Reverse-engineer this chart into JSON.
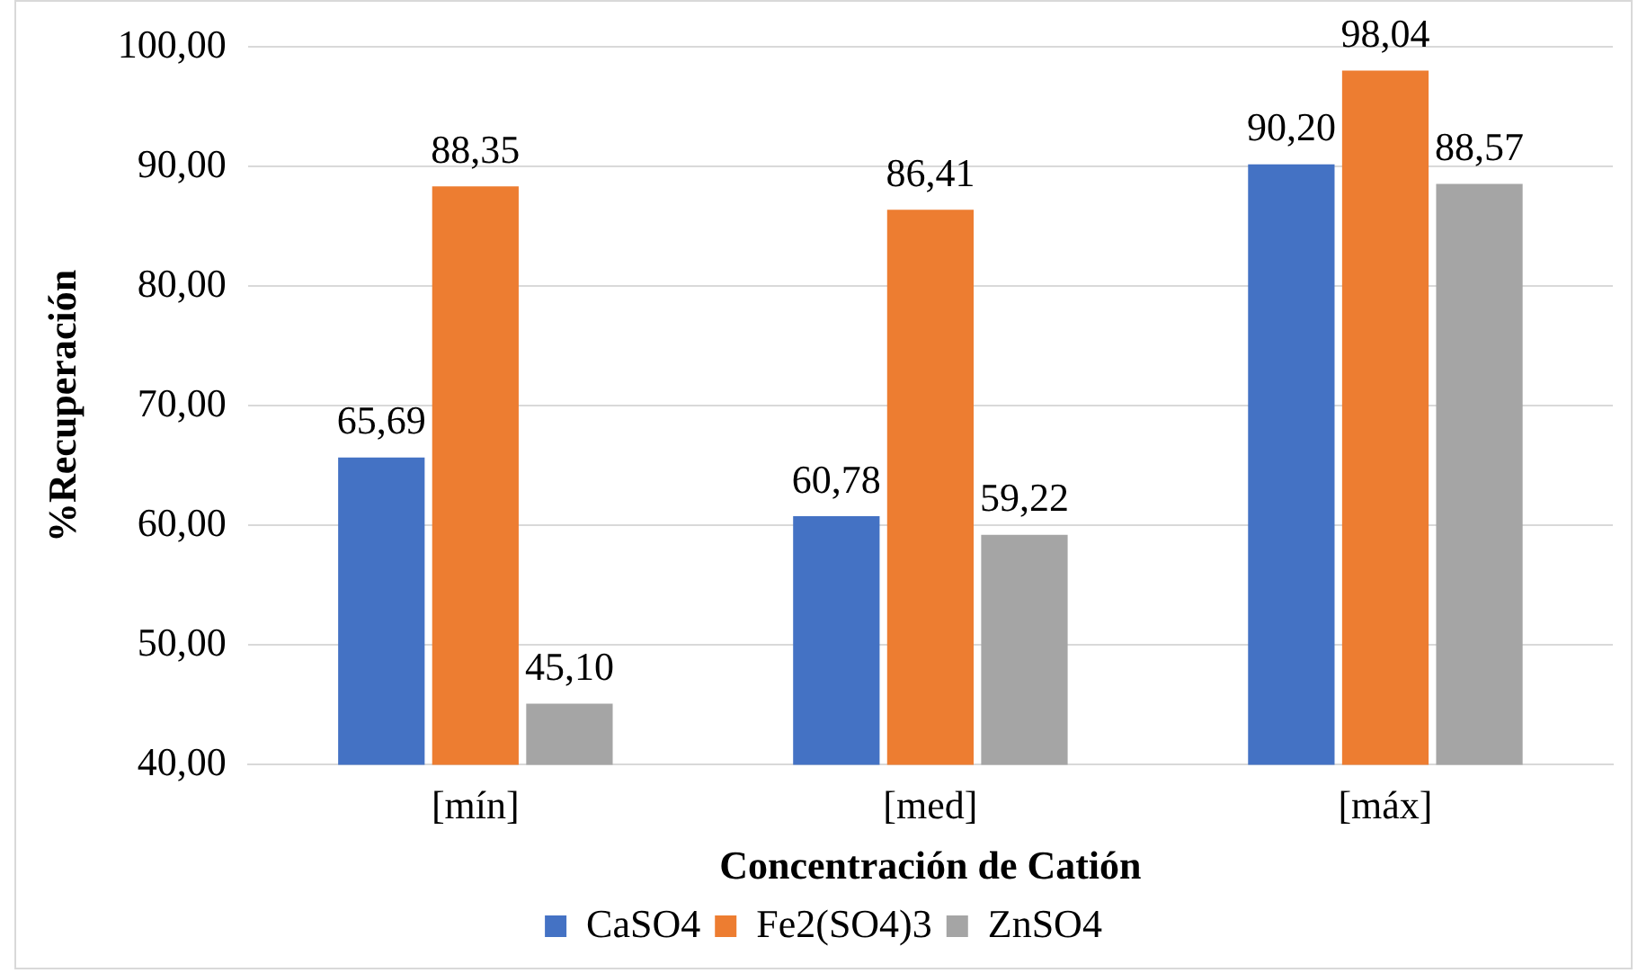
{
  "chart_data": {
    "type": "bar",
    "xlabel": "Concentración de Catión",
    "ylabel": "%Recuperación",
    "categories": [
      "[mín]",
      "[med]",
      "[máx]"
    ],
    "series": [
      {
        "name": "CaSO4",
        "color": "#4472c4",
        "values": [
          65.69,
          60.78,
          90.2
        ],
        "value_labels": [
          "65,69",
          "60,78",
          "90,20"
        ]
      },
      {
        "name": "Fe2(SO4)3",
        "color": "#ed7d31",
        "values": [
          88.35,
          86.41,
          98.04
        ],
        "value_labels": [
          "88,35",
          "86,41",
          "98,04"
        ]
      },
      {
        "name": "ZnSO4",
        "color": "#a5a5a5",
        "values": [
          45.1,
          59.22,
          88.57
        ],
        "value_labels": [
          "45,10",
          "59,22",
          "88,57"
        ]
      }
    ],
    "ylim": [
      40,
      100
    ],
    "yticks": [
      {
        "value": 40,
        "label": "40,00"
      },
      {
        "value": 50,
        "label": "50,00"
      },
      {
        "value": 60,
        "label": "60,00"
      },
      {
        "value": 70,
        "label": "70,00"
      },
      {
        "value": 80,
        "label": "80,00"
      },
      {
        "value": 90,
        "label": "90,00"
      },
      {
        "value": 100,
        "label": "100,00"
      }
    ],
    "grid": "y",
    "legend": "bottom"
  }
}
